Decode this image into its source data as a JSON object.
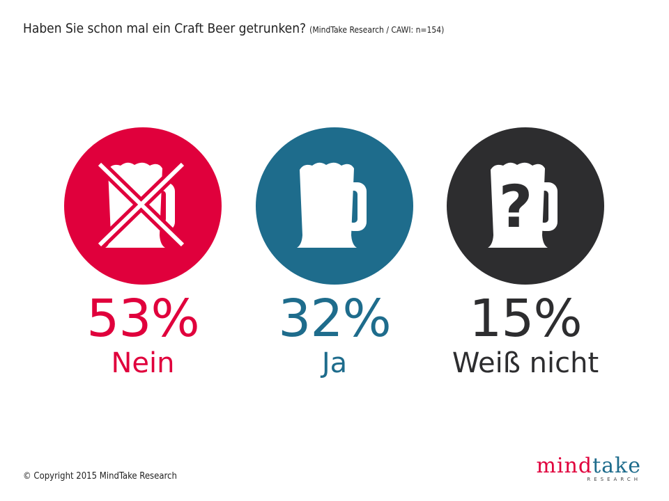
{
  "title": "Haben Sie schon mal ein Craft Beer getrunken?",
  "title_note": "(MindTake Research / CAWI: n=154)",
  "copyright": "© Copyright 2015 MindTake Research",
  "logo": {
    "brand_a": "mind",
    "brand_b": "take",
    "sub": "RESEARCH",
    "color_a": "#e0003c",
    "color_b": "#1e6c8c"
  },
  "chart_data": {
    "type": "pictogram",
    "unit": "%",
    "categories": [
      {
        "label": "Nein",
        "value": 53,
        "display": "53%",
        "color": "#e0003c",
        "icon": "crossed-beer-mug-icon"
      },
      {
        "label": "Ja",
        "value": 32,
        "display": "32%",
        "color": "#1e6c8c",
        "icon": "beer-mug-icon"
      },
      {
        "label": "Weiß nicht",
        "value": 15,
        "display": "15%",
        "color": "#2d2d2f",
        "icon": "beer-mug-question-icon"
      }
    ]
  }
}
